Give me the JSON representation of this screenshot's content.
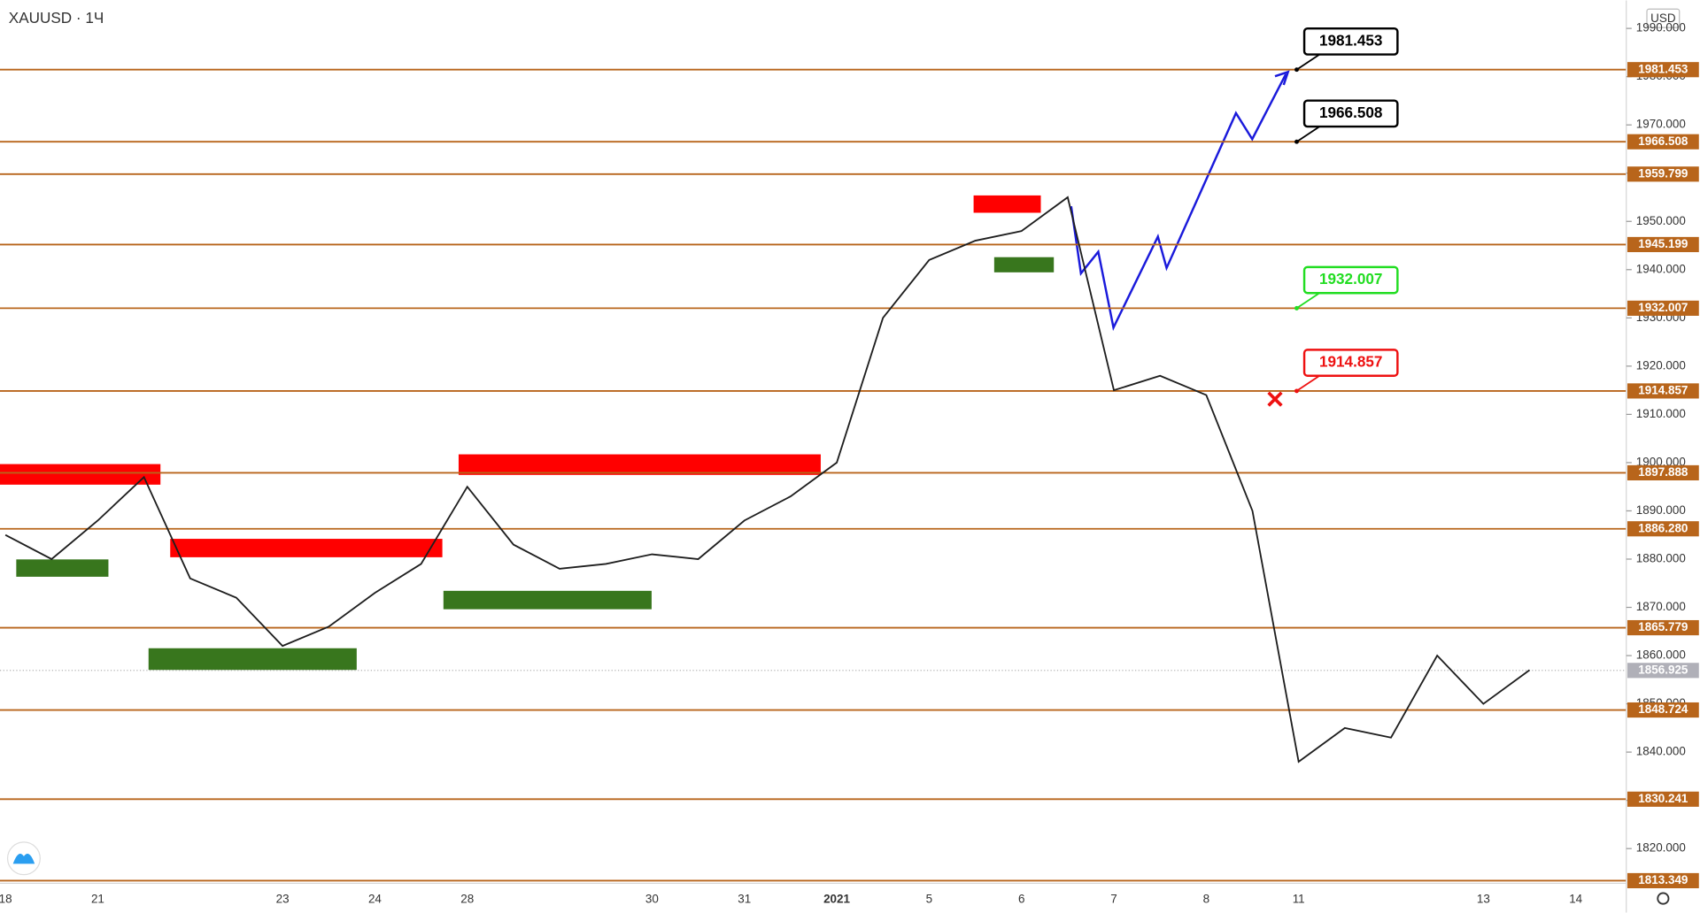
{
  "chart_data": {
    "type": "line",
    "title": "XAUUSD · 1Ч",
    "currency": "USD",
    "color": "#1e1e1e",
    "level_color": "#b8651b",
    "categories": [
      "18",
      null,
      "21",
      null,
      null,
      null,
      "23",
      null,
      "24",
      null,
      "28",
      null,
      null,
      null,
      "30",
      null,
      "31",
      null,
      "2021",
      null,
      "5",
      null,
      "6",
      null,
      "7",
      null,
      "8",
      null,
      "11",
      null,
      null,
      null,
      "13",
      null,
      "14",
      null
    ],
    "values": [
      1885,
      1880,
      1888,
      1897,
      1876,
      1872,
      1862,
      1866,
      1873,
      1879,
      1895,
      1883,
      1878,
      1879,
      1881,
      1880,
      1888,
      1893,
      1900,
      1930,
      1942,
      1946,
      1948,
      1955,
      1915,
      1918,
      1914,
      1890,
      1838,
      1845,
      1843,
      1860,
      1850,
      1857,
      null,
      null
    ],
    "ylim": [
      1812.8,
      1995.8
    ],
    "yticks": [
      {
        "value": 1820,
        "label": "1820.000"
      },
      {
        "value": 1830,
        "label": "1830.000"
      },
      {
        "value": 1840,
        "label": "1840.000"
      },
      {
        "value": 1850,
        "label": "1850.000"
      },
      {
        "value": 1860,
        "label": "1860.000"
      },
      {
        "value": 1870,
        "label": "1870.000"
      },
      {
        "value": 1880,
        "label": "1880.000"
      },
      {
        "value": 1890,
        "label": "1890.000"
      },
      {
        "value": 1900,
        "label": "1900.000"
      },
      {
        "value": 1910,
        "label": "1910.000"
      },
      {
        "value": 1920,
        "label": "1920.000"
      },
      {
        "value": 1930,
        "label": "1930.000"
      },
      {
        "value": 1940,
        "label": "1940.000"
      },
      {
        "value": 1950,
        "label": "1950.000"
      },
      {
        "value": 1960,
        "label": "1960.000"
      },
      {
        "value": 1970,
        "label": "1970.000"
      },
      {
        "value": 1980,
        "label": "1980.000"
      },
      {
        "value": 1990,
        "label": "1990.000"
      }
    ],
    "levels": [
      {
        "value": 1981.453,
        "label": "1981.453"
      },
      {
        "value": 1966.508,
        "label": "1966.508"
      },
      {
        "value": 1959.799,
        "label": "1959.799"
      },
      {
        "value": 1945.199,
        "label": "1945.199"
      },
      {
        "value": 1932.007,
        "label": "1932.007"
      },
      {
        "value": 1914.857,
        "label": "1914.857"
      },
      {
        "value": 1897.888,
        "label": "1897.888"
      },
      {
        "value": 1886.28,
        "label": "1886.280"
      },
      {
        "value": 1865.779,
        "label": "1865.779"
      },
      {
        "value": 1848.724,
        "label": "1848.724"
      },
      {
        "value": 1830.241,
        "label": "1830.241"
      },
      {
        "value": 1813.349,
        "label": "1813.349"
      }
    ],
    "last_price": {
      "value": 1856.925,
      "label": "1856.925"
    },
    "callouts": [
      {
        "value": 1981.453,
        "label": "1981.453",
        "color": "#000000"
      },
      {
        "value": 1966.508,
        "label": "1966.508",
        "color": "#000000"
      },
      {
        "value": 1932.007,
        "label": "1932.007",
        "color": "#22dd22"
      },
      {
        "value": 1914.857,
        "label": "1914.857",
        "color": "#ee1111"
      }
    ]
  }
}
